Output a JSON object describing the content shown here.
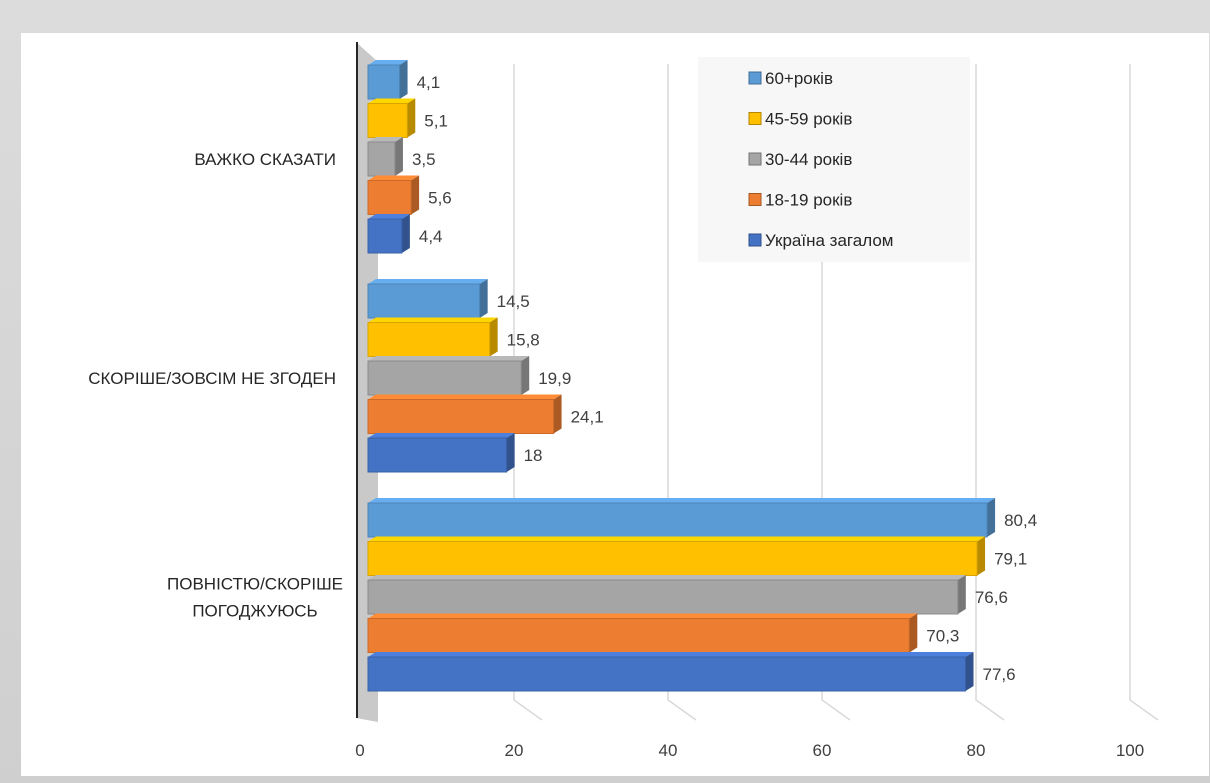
{
  "chart_data": {
    "type": "bar",
    "orientation": "horizontal",
    "categories": [
      "ВАЖКО СКАЗАТИ",
      "СКОРІШЕ/ЗОВСІМ НЕ ЗГОДЕН",
      "ПОВНІСТЮ/СКОРІШЕ ПОГОДЖУЮСЬ"
    ],
    "series": [
      {
        "name": "60+років",
        "color": "#5b9bd5",
        "values": [
          4.1,
          14.5,
          80.4
        ],
        "labels": [
          "4,1",
          "14,5",
          "80,4"
        ]
      },
      {
        "name": "45-59 років",
        "color": "#ffc000",
        "values": [
          5.1,
          15.8,
          79.1
        ],
        "labels": [
          "5,1",
          "15,8",
          "79,1"
        ]
      },
      {
        "name": "30-44 років",
        "color": "#a5a5a5",
        "values": [
          3.5,
          19.9,
          76.6
        ],
        "labels": [
          "3,5",
          "19,9",
          "76,6"
        ]
      },
      {
        "name": "18-19 років",
        "color": "#ed7d31",
        "values": [
          5.6,
          24.1,
          70.3
        ],
        "labels": [
          "5,6",
          "24,1",
          "70,3"
        ]
      },
      {
        "name": "Україна загалом",
        "color": "#4472c4",
        "values": [
          4.4,
          18,
          77.6
        ],
        "labels": [
          "4,4",
          "18",
          "77,6"
        ]
      }
    ],
    "xticks": [
      "0",
      "20",
      "40",
      "60",
      "80",
      "100"
    ],
    "xlim": [
      0,
      100
    ],
    "grid": true,
    "legend_position": "top-right",
    "title": "",
    "xlabel": "",
    "ylabel": ""
  }
}
